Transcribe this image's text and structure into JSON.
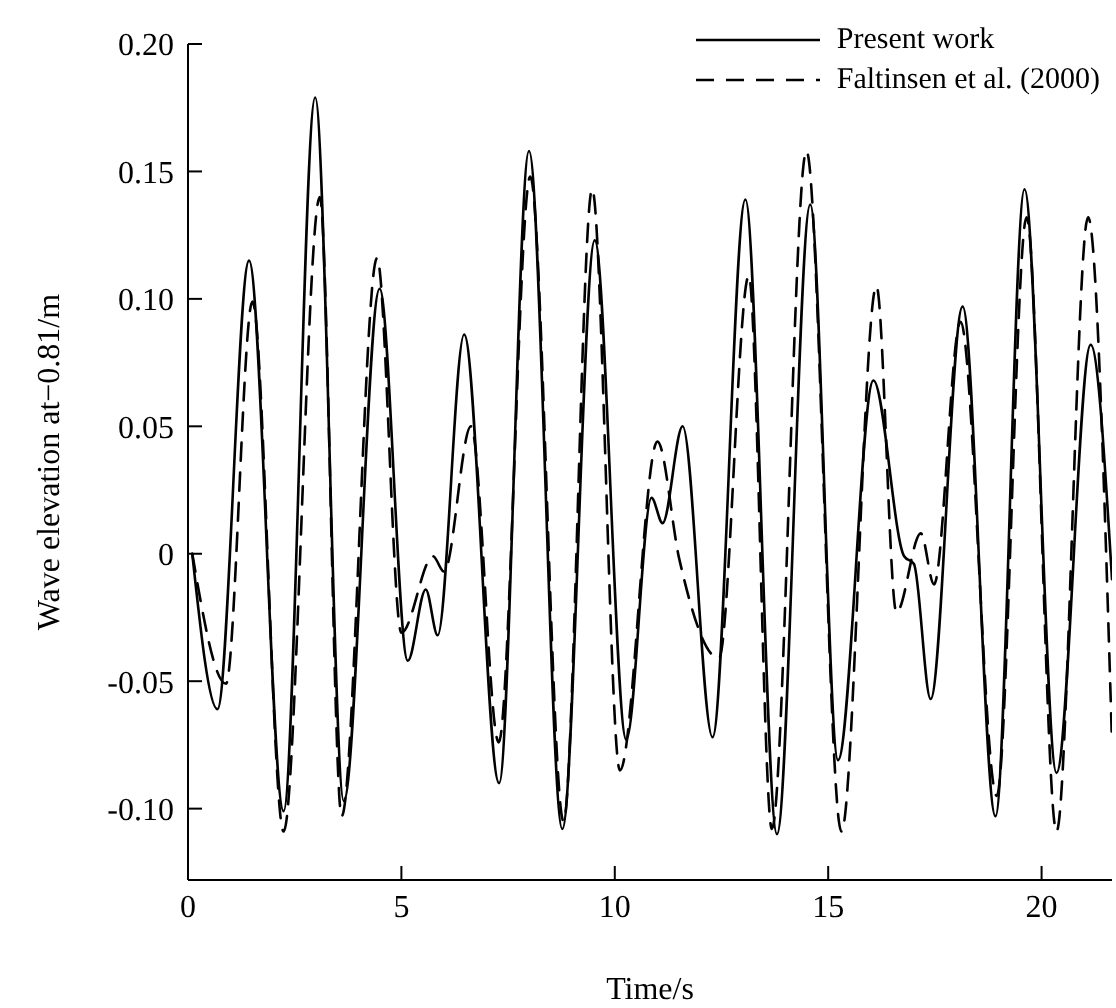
{
  "chart_data": {
    "type": "line",
    "xlabel": "Time/s",
    "ylabel": "Wave elevation at−0.81/m",
    "xlim": [
      0,
      21.65
    ],
    "xticks": [
      0,
      5,
      10,
      15,
      20
    ],
    "ylim": [
      -0.128,
      0.2
    ],
    "yticks": [
      {
        "value": -0.1,
        "label": "-0.10"
      },
      {
        "value": -0.05,
        "label": "-0.05"
      },
      0,
      {
        "value": 0.05,
        "label": "0.05"
      },
      {
        "value": 0.1,
        "label": "0.10"
      },
      {
        "value": 0.15,
        "label": "0.15"
      },
      {
        "value": 0.2,
        "label": "0.20"
      }
    ],
    "grid": false,
    "legend": "top right",
    "marker": "none",
    "series": [
      {
        "name": "Present work",
        "color": "#000000",
        "line_style": "solid",
        "x": [
          0.1,
          0.69,
          1.43,
          2.24,
          2.98,
          3.65,
          4.49,
          5.15,
          5.57,
          5.85,
          6.47,
          7.29,
          7.99,
          8.77,
          9.53,
          10.27,
          10.86,
          11.12,
          11.59,
          12.29,
          13.06,
          13.8,
          14.58,
          15.23,
          16.06,
          16.78,
          17.01,
          17.4,
          18.15,
          18.92,
          19.6,
          20.35,
          21.15,
          21.65
        ],
        "values": [
          0,
          -0.061,
          0.115,
          -0.101,
          0.179,
          -0.097,
          0.104,
          -0.042,
          -0.014,
          -0.032,
          0.086,
          -0.09,
          0.158,
          -0.108,
          0.123,
          -0.073,
          0.022,
          0.012,
          0.05,
          -0.072,
          0.139,
          -0.11,
          0.137,
          -0.081,
          0.068,
          -0.001,
          -0.004,
          -0.057,
          0.097,
          -0.103,
          0.143,
          -0.086,
          0.082,
          -0.01
        ]
      },
      {
        "name": "Faltinsen et al. (2000)",
        "color": "#000000",
        "line_style": "dashed",
        "x": [
          0.1,
          0.89,
          1.51,
          2.24,
          3.09,
          3.6,
          4.43,
          5.0,
          5.74,
          6.0,
          6.63,
          7.28,
          8.02,
          8.8,
          9.47,
          10.12,
          11.0,
          11.51,
          12.44,
          13.14,
          13.68,
          14.49,
          15.31,
          16.13,
          16.6,
          17.17,
          17.48,
          18.1,
          18.95,
          19.65,
          20.35,
          21.09,
          21.65
        ],
        "values": [
          0,
          -0.051,
          0.099,
          -0.109,
          0.14,
          -0.103,
          0.116,
          -0.031,
          -0.001,
          -0.007,
          0.05,
          -0.074,
          0.148,
          -0.105,
          0.143,
          -0.085,
          0.044,
          -0.002,
          -0.041,
          0.109,
          -0.108,
          0.158,
          -0.109,
          0.105,
          -0.023,
          0.008,
          -0.012,
          0.091,
          -0.095,
          0.132,
          -0.109,
          0.132,
          -0.074
        ]
      }
    ]
  }
}
